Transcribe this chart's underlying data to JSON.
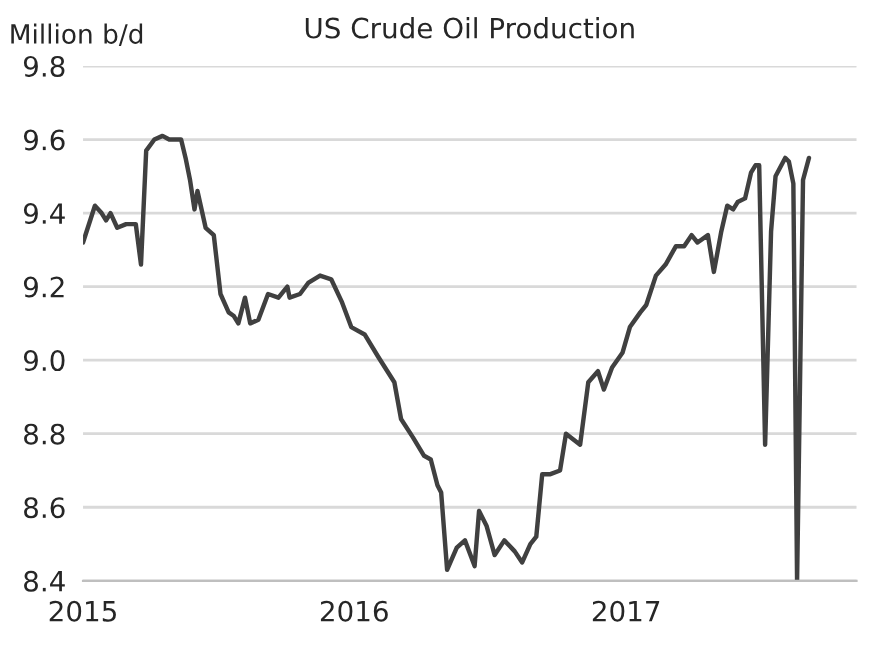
{
  "chart_data": {
    "type": "line",
    "title": "US Crude Oil Production",
    "ylabel": "Million b/d",
    "x": [
      "2015-01-01",
      "2015-01-17",
      "2015-01-26",
      "2015-02-01",
      "2015-02-07",
      "2015-02-16",
      "2015-02-28",
      "2015-03-13",
      "2015-03-20",
      "2015-03-27",
      "2015-04-07",
      "2015-04-18",
      "2015-04-27",
      "2015-05-13",
      "2015-05-19",
      "2015-05-25",
      "2015-05-31",
      "2015-06-04",
      "2015-06-15",
      "2015-06-26",
      "2015-07-05",
      "2015-07-16",
      "2015-07-23",
      "2015-07-29",
      "2015-08-07",
      "2015-08-14",
      "2015-08-25",
      "2015-09-07",
      "2015-09-21",
      "2015-10-03",
      "2015-10-06",
      "2015-10-20",
      "2015-10-31",
      "2015-11-16",
      "2015-12-01",
      "2015-12-15",
      "2015-12-28",
      "2016-01-15",
      "2016-02-02",
      "2016-02-24",
      "2016-03-04",
      "2016-03-20",
      "2016-04-04",
      "2016-04-13",
      "2016-04-22",
      "2016-04-27",
      "2016-05-05",
      "2016-05-18",
      "2016-05-29",
      "2016-06-11",
      "2016-06-17",
      "2016-06-27",
      "2016-07-08",
      "2016-07-21",
      "2016-08-04",
      "2016-08-14",
      "2016-08-25",
      "2016-09-02",
      "2016-09-10",
      "2016-09-21",
      "2016-10-04",
      "2016-10-12",
      "2016-10-31",
      "2016-11-11",
      "2016-11-24",
      "2016-12-02",
      "2016-12-13",
      "2016-12-27",
      "2017-01-06",
      "2017-01-20",
      "2017-01-28",
      "2017-02-10",
      "2017-02-23",
      "2017-03-09",
      "2017-03-20",
      "2017-03-30",
      "2017-04-07",
      "2017-04-21",
      "2017-04-29",
      "2017-05-09",
      "2017-05-17",
      "2017-05-25",
      "2017-05-31",
      "2017-06-10",
      "2017-06-18",
      "2017-06-24",
      "2017-06-29",
      "2017-07-07",
      "2017-07-15",
      "2017-07-21",
      "2017-08-03",
      "2017-08-08",
      "2017-08-14",
      "2017-08-19",
      "2017-08-27",
      "2017-09-04"
    ],
    "series": [
      {
        "color": "#404040",
        "values": [
          9.32,
          9.42,
          9.4,
          9.38,
          9.4,
          9.36,
          9.37,
          9.37,
          9.26,
          9.57,
          9.6,
          9.61,
          9.6,
          9.6,
          9.55,
          9.49,
          9.41,
          9.46,
          9.36,
          9.34,
          9.18,
          9.13,
          9.12,
          9.1,
          9.17,
          9.1,
          9.11,
          9.18,
          9.17,
          9.2,
          9.17,
          9.18,
          9.21,
          9.23,
          9.22,
          9.16,
          9.09,
          9.07,
          9.01,
          8.94,
          8.84,
          8.79,
          8.74,
          8.73,
          8.66,
          8.64,
          8.43,
          8.49,
          8.51,
          8.44,
          8.59,
          8.55,
          8.47,
          8.51,
          8.48,
          8.45,
          8.5,
          8.52,
          8.69,
          8.69,
          8.7,
          8.8,
          8.77,
          8.94,
          8.97,
          8.92,
          8.98,
          9.02,
          9.09,
          9.13,
          9.15,
          9.23,
          9.26,
          9.31,
          9.31,
          9.34,
          9.32,
          9.34,
          9.24,
          9.35,
          9.42,
          9.41,
          9.43,
          9.44,
          9.51,
          9.53,
          9.53,
          8.77,
          9.35,
          9.5,
          9.55,
          9.54,
          9.48,
          8.4,
          9.49,
          9.55
        ]
      }
    ],
    "xlim": [
      "2015-01-01",
      "2017-11-07"
    ],
    "xticks": [
      {
        "value": "2015-01-01",
        "label": "2015"
      },
      {
        "value": "2016-01-01",
        "label": "2016"
      },
      {
        "value": "2017-01-01",
        "label": "2017"
      }
    ],
    "ylim": [
      8.4,
      9.8
    ],
    "yticks": [
      {
        "value": 8.4,
        "label": "8.4"
      },
      {
        "value": 8.6,
        "label": "8.6"
      },
      {
        "value": 8.8,
        "label": "8.8"
      },
      {
        "value": 9.0,
        "label": "9.0"
      },
      {
        "value": 9.2,
        "label": "9.2"
      },
      {
        "value": 9.4,
        "label": "9.4"
      },
      {
        "value": 9.6,
        "label": "9.6"
      },
      {
        "value": 9.8,
        "label": "9.8"
      }
    ],
    "grid": "y",
    "line_style": "solid"
  }
}
